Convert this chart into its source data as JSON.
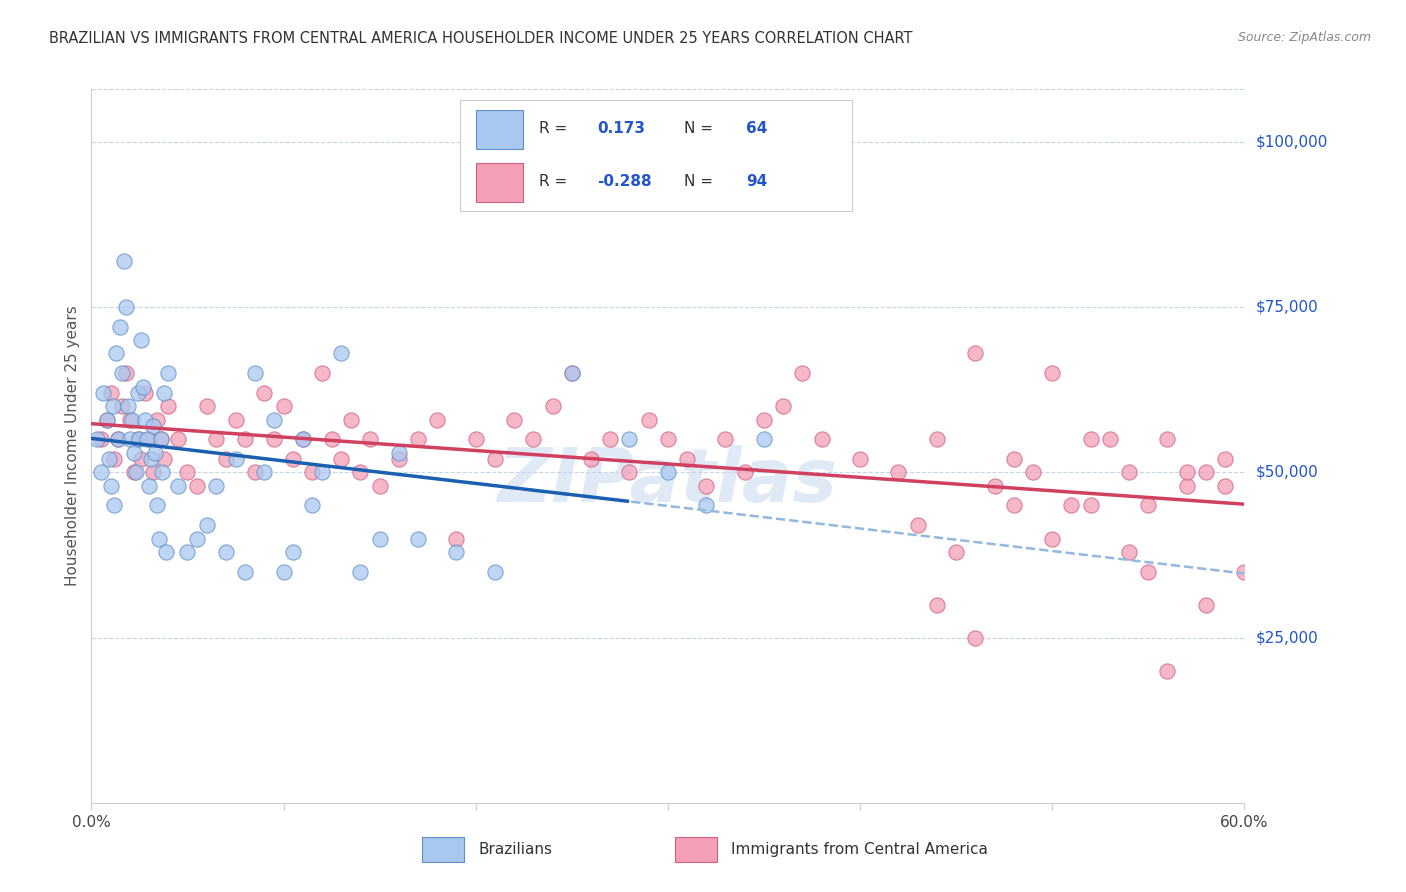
{
  "title": "BRAZILIAN VS IMMIGRANTS FROM CENTRAL AMERICA HOUSEHOLDER INCOME UNDER 25 YEARS CORRELATION CHART",
  "source": "Source: ZipAtlas.com",
  "ylabel": "Householder Income Under 25 years",
  "brazilians_color": "#a8c8f0",
  "brazilians_edge": "#6090c8",
  "central_america_color": "#f4a0b8",
  "central_america_edge": "#d06080",
  "trend_blue_color": "#1a5fb0",
  "trend_pink_color": "#d04060",
  "trend_dash_color": "#90b8e0",
  "background_color": "#ffffff",
  "grid_color": "#c8d4e8",
  "watermark_color": "#c8d8f0",
  "r_blue": 0.173,
  "n_blue": 64,
  "r_pink": -0.288,
  "n_pink": 94,
  "blue_scatter_x": [
    0.3,
    0.5,
    0.6,
    0.8,
    0.9,
    1.0,
    1.1,
    1.2,
    1.3,
    1.4,
    1.5,
    1.6,
    1.7,
    1.8,
    1.9,
    2.0,
    2.1,
    2.2,
    2.3,
    2.4,
    2.5,
    2.6,
    2.7,
    2.8,
    2.9,
    3.0,
    3.1,
    3.2,
    3.3,
    3.4,
    3.5,
    3.6,
    3.7,
    3.8,
    3.9,
    4.0,
    4.5,
    5.0,
    5.5,
    6.0,
    6.5,
    7.0,
    7.5,
    8.0,
    8.5,
    9.0,
    9.5,
    10.0,
    10.5,
    11.0,
    11.5,
    12.0,
    13.0,
    14.0,
    15.0,
    16.0,
    17.0,
    19.0,
    21.0,
    25.0,
    28.0,
    30.0,
    32.0,
    35.0
  ],
  "blue_scatter_y": [
    55000,
    50000,
    62000,
    58000,
    52000,
    48000,
    60000,
    45000,
    68000,
    55000,
    72000,
    65000,
    82000,
    75000,
    60000,
    55000,
    58000,
    53000,
    50000,
    62000,
    55000,
    70000,
    63000,
    58000,
    55000,
    48000,
    52000,
    57000,
    53000,
    45000,
    40000,
    55000,
    50000,
    62000,
    38000,
    65000,
    48000,
    38000,
    40000,
    42000,
    48000,
    38000,
    52000,
    35000,
    65000,
    50000,
    58000,
    35000,
    38000,
    55000,
    45000,
    50000,
    68000,
    35000,
    40000,
    53000,
    40000,
    38000,
    35000,
    65000,
    55000,
    50000,
    45000,
    55000
  ],
  "pink_scatter_x": [
    0.5,
    0.8,
    1.0,
    1.2,
    1.4,
    1.6,
    1.8,
    2.0,
    2.2,
    2.4,
    2.6,
    2.8,
    3.0,
    3.2,
    3.4,
    3.6,
    3.8,
    4.0,
    4.5,
    5.0,
    5.5,
    6.0,
    6.5,
    7.0,
    7.5,
    8.0,
    8.5,
    9.0,
    9.5,
    10.0,
    10.5,
    11.0,
    11.5,
    12.0,
    12.5,
    13.0,
    13.5,
    14.0,
    14.5,
    15.0,
    16.0,
    17.0,
    18.0,
    19.0,
    20.0,
    21.0,
    22.0,
    23.0,
    24.0,
    25.0,
    26.0,
    27.0,
    28.0,
    29.0,
    30.0,
    31.0,
    32.0,
    33.0,
    34.0,
    35.0,
    36.0,
    37.0,
    38.0,
    40.0,
    42.0,
    44.0,
    46.0,
    48.0,
    50.0,
    52.0,
    54.0,
    55.0,
    56.0,
    57.0,
    58.0,
    59.0,
    43.0,
    45.0,
    47.0,
    49.0,
    51.0,
    53.0,
    55.0,
    57.0,
    59.0,
    44.0,
    46.0,
    48.0,
    50.0,
    52.0,
    54.0,
    56.0,
    58.0,
    60.0
  ],
  "pink_scatter_y": [
    55000,
    58000,
    62000,
    52000,
    55000,
    60000,
    65000,
    58000,
    50000,
    55000,
    52000,
    62000,
    55000,
    50000,
    58000,
    55000,
    52000,
    60000,
    55000,
    50000,
    48000,
    60000,
    55000,
    52000,
    58000,
    55000,
    50000,
    62000,
    55000,
    60000,
    52000,
    55000,
    50000,
    65000,
    55000,
    52000,
    58000,
    50000,
    55000,
    48000,
    52000,
    55000,
    58000,
    40000,
    55000,
    52000,
    58000,
    55000,
    60000,
    65000,
    52000,
    55000,
    50000,
    58000,
    55000,
    52000,
    48000,
    55000,
    50000,
    58000,
    60000,
    65000,
    55000,
    52000,
    50000,
    55000,
    68000,
    52000,
    65000,
    55000,
    50000,
    45000,
    55000,
    48000,
    50000,
    52000,
    42000,
    38000,
    48000,
    50000,
    45000,
    55000,
    35000,
    50000,
    48000,
    30000,
    25000,
    45000,
    40000,
    45000,
    38000,
    20000,
    30000,
    35000
  ]
}
